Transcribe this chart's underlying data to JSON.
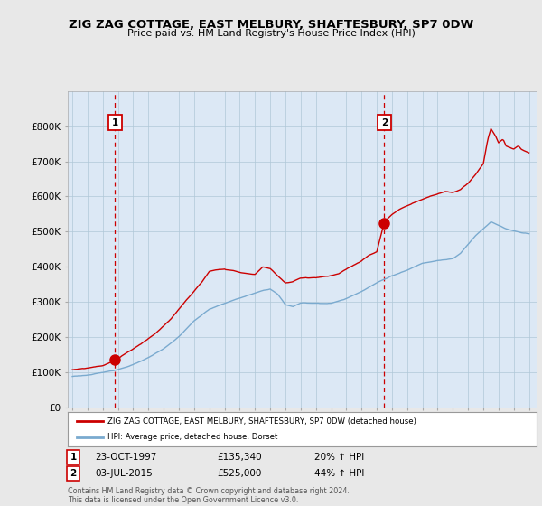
{
  "title": "ZIG ZAG COTTAGE, EAST MELBURY, SHAFTESBURY, SP7 0DW",
  "subtitle": "Price paid vs. HM Land Registry's House Price Index (HPI)",
  "ylim": [
    0,
    900000
  ],
  "yticks": [
    0,
    100000,
    200000,
    300000,
    400000,
    500000,
    600000,
    700000,
    800000
  ],
  "ytick_labels": [
    "£0",
    "£100K",
    "£200K",
    "£300K",
    "£400K",
    "£500K",
    "£600K",
    "£700K",
    "£800K"
  ],
  "bg_color": "#e8e8e8",
  "plot_bg_color": "#dce8f5",
  "red_color": "#cc0000",
  "blue_color": "#7aaacf",
  "marker1_x": 1997.81,
  "marker1_y": 135340,
  "marker2_x": 2015.5,
  "marker2_y": 525000,
  "sale1_date": "23-OCT-1997",
  "sale1_price": "£135,340",
  "sale1_hpi": "20% ↑ HPI",
  "sale2_date": "03-JUL-2015",
  "sale2_price": "£525,000",
  "sale2_hpi": "44% ↑ HPI",
  "legend_line1": "ZIG ZAG COTTAGE, EAST MELBURY, SHAFTESBURY, SP7 0DW (detached house)",
  "legend_line2": "HPI: Average price, detached house, Dorset",
  "footnote": "Contains HM Land Registry data © Crown copyright and database right 2024.\nThis data is licensed under the Open Government Licence v3.0.",
  "xmin": 1994.7,
  "xmax": 2025.5
}
